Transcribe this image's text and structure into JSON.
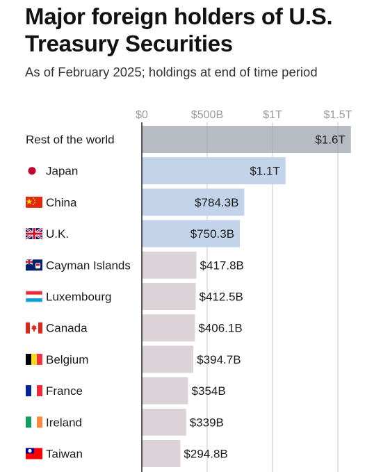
{
  "title": "Major foreign holders of U.S. Treasury Securities",
  "subtitle": "As of February 2025; holdings at end of time period",
  "colors": {
    "rest": "#b7bcc2",
    "top": "#c3d3ea",
    "other": "#dcd3d9",
    "grid": "#c8c8c8",
    "tick": "#9a9a9a",
    "text": "#1a1a1a"
  },
  "chart_data": {
    "type": "bar",
    "orientation": "horizontal",
    "xlim": [
      0,
      1.7
    ],
    "x_unit": "trillions USD",
    "x_ticks": [
      {
        "value": 0,
        "label": "$0"
      },
      {
        "value": 0.5,
        "label": "$500B"
      },
      {
        "value": 1.0,
        "label": "$1T"
      },
      {
        "value": 1.5,
        "label": "$1.5T"
      }
    ],
    "categories": [
      "Rest of the world",
      "Japan",
      "China",
      "U.K.",
      "Cayman Islands",
      "Luxembourg",
      "Canada",
      "Belgium",
      "France",
      "Ireland",
      "Taiwan"
    ],
    "values": [
      1.6,
      1.1,
      0.7843,
      0.7503,
      0.4178,
      0.4125,
      0.4061,
      0.3947,
      0.354,
      0.339,
      0.2948
    ],
    "value_labels": [
      "$1.6T",
      "$1.1T",
      "$784.3B",
      "$750.3B",
      "$417.8B",
      "$412.5B",
      "$406.1B",
      "$394.7B",
      "$354B",
      "$339B",
      "$294.8B"
    ],
    "flags": [
      "",
      "japan-flag",
      "china-flag",
      "uk-flag",
      "cayman-islands-flag",
      "luxembourg-flag",
      "canada-flag",
      "belgium-flag",
      "france-flag",
      "ireland-flag",
      "taiwan-flag"
    ],
    "bar_groups": [
      "rest",
      "top",
      "top",
      "top",
      "other",
      "other",
      "other",
      "other",
      "other",
      "other",
      "other"
    ],
    "grid": true
  }
}
